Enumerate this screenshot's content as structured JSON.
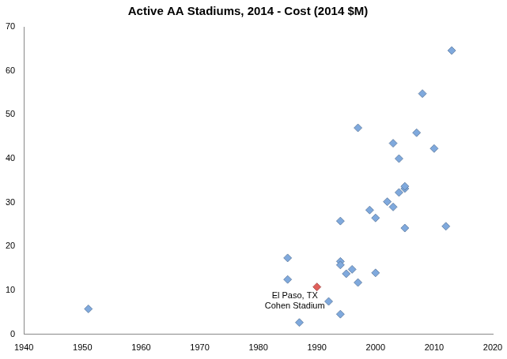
{
  "chart_data": {
    "type": "scatter",
    "title": "Active AA Stadiums, 2014 - Cost (2014 $M)",
    "x": [
      1951,
      1985,
      1985,
      1987,
      1990,
      1992,
      1994,
      1994,
      1994,
      1994,
      1995,
      1996,
      1997,
      1997,
      1999,
      2000,
      2000,
      2002,
      2003,
      2003,
      2004,
      2004,
      2005,
      2005,
      2005,
      2007,
      2008,
      2010,
      2012,
      2013
    ],
    "values": [
      5.8,
      17.4,
      12.5,
      2.7,
      10.8,
      7.5,
      25.8,
      16.6,
      15.8,
      4.6,
      13.8,
      14.8,
      11.8,
      47,
      28.3,
      26.5,
      14,
      30.2,
      43.5,
      29,
      40,
      32.3,
      33.2,
      33.7,
      24.2,
      45.9,
      54.8,
      42.3,
      24.6,
      64.6
    ],
    "colors": [
      "#7fa9dd",
      "#7fa9dd",
      "#7fa9dd",
      "#7fa9dd",
      "#e0605b",
      "#7fa9dd",
      "#7fa9dd",
      "#7fa9dd",
      "#7fa9dd",
      "#7fa9dd",
      "#7fa9dd",
      "#7fa9dd",
      "#7fa9dd",
      "#7fa9dd",
      "#7fa9dd",
      "#7fa9dd",
      "#7fa9dd",
      "#7fa9dd",
      "#7fa9dd",
      "#7fa9dd",
      "#7fa9dd",
      "#7fa9dd",
      "#7fa9dd",
      "#7fa9dd",
      "#7fa9dd",
      "#7fa9dd",
      "#7fa9dd",
      "#7fa9dd",
      "#7fa9dd",
      "#7fa9dd"
    ],
    "marker": "diamond",
    "annotations": [
      {
        "x": 1990,
        "y": 10.8,
        "text": [
          "El Paso, TX",
          "Cohen Stadium"
        ]
      }
    ],
    "xlim": [
      1940,
      2020
    ],
    "xticks": [
      1940,
      1950,
      1960,
      1970,
      1980,
      1990,
      2000,
      2010,
      2020
    ],
    "ylim": [
      0,
      70
    ],
    "yticks": [
      0,
      10,
      20,
      30,
      40,
      50,
      60,
      70
    ],
    "grid": false
  }
}
